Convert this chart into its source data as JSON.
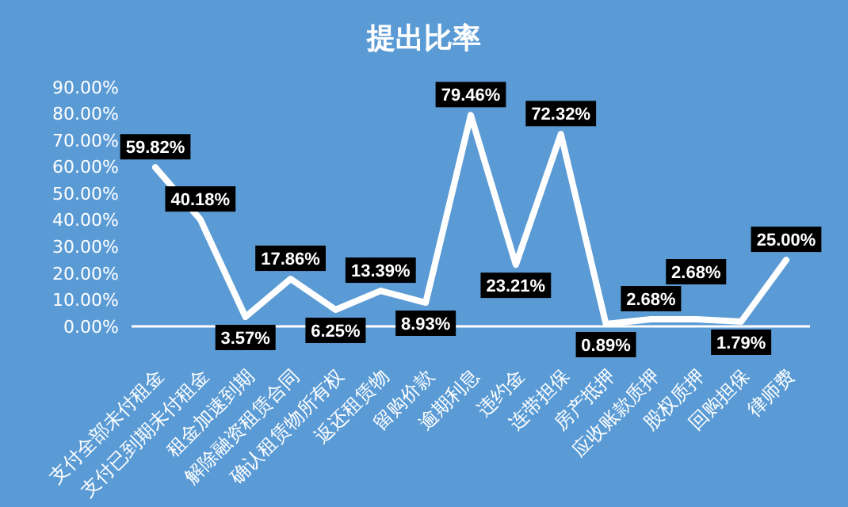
{
  "chart_data": {
    "type": "line",
    "title": "提出比率",
    "categories": [
      "支付全部未付租金",
      "支付已到期未付租金",
      "租金加速到期",
      "解除融资租赁合同",
      "确认租赁物所有权",
      "返还租赁物",
      "留购价款",
      "逾期利息",
      "违约金",
      "连带担保",
      "房产抵押",
      "应收账款质押",
      "股权质押",
      "回购担保",
      "律师费"
    ],
    "series": [
      {
        "color": "#ffffff",
        "values": [
          59.82,
          40.18,
          3.57,
          17.86,
          6.25,
          13.39,
          8.93,
          79.46,
          23.21,
          72.32,
          0.89,
          2.68,
          2.68,
          1.79,
          25.0
        ],
        "value_labels": [
          "59.82%",
          "40.18%",
          "3.57%",
          "17.86%",
          "6.25%",
          "13.39%",
          "8.93%",
          "79.46%",
          "23.21%",
          "72.32%",
          "0.89%",
          "2.68%",
          "2.68%",
          "1.79%",
          "25.00%"
        ]
      }
    ],
    "ylim": [
      0,
      90
    ],
    "yticks": [
      {
        "value": 0,
        "label": "0.00%"
      },
      {
        "value": 10,
        "label": "10.00%"
      },
      {
        "value": 20,
        "label": "20.00%"
      },
      {
        "value": 30,
        "label": "30.00%"
      },
      {
        "value": 40,
        "label": "40.00%"
      },
      {
        "value": 50,
        "label": "50.00%"
      },
      {
        "value": 60,
        "label": "60.00%"
      },
      {
        "value": 70,
        "label": "70.00%"
      },
      {
        "value": 80,
        "label": "80.00%"
      },
      {
        "value": 90,
        "label": "90.00%"
      }
    ],
    "grid": false,
    "marker": "none",
    "line_style": "solid"
  }
}
